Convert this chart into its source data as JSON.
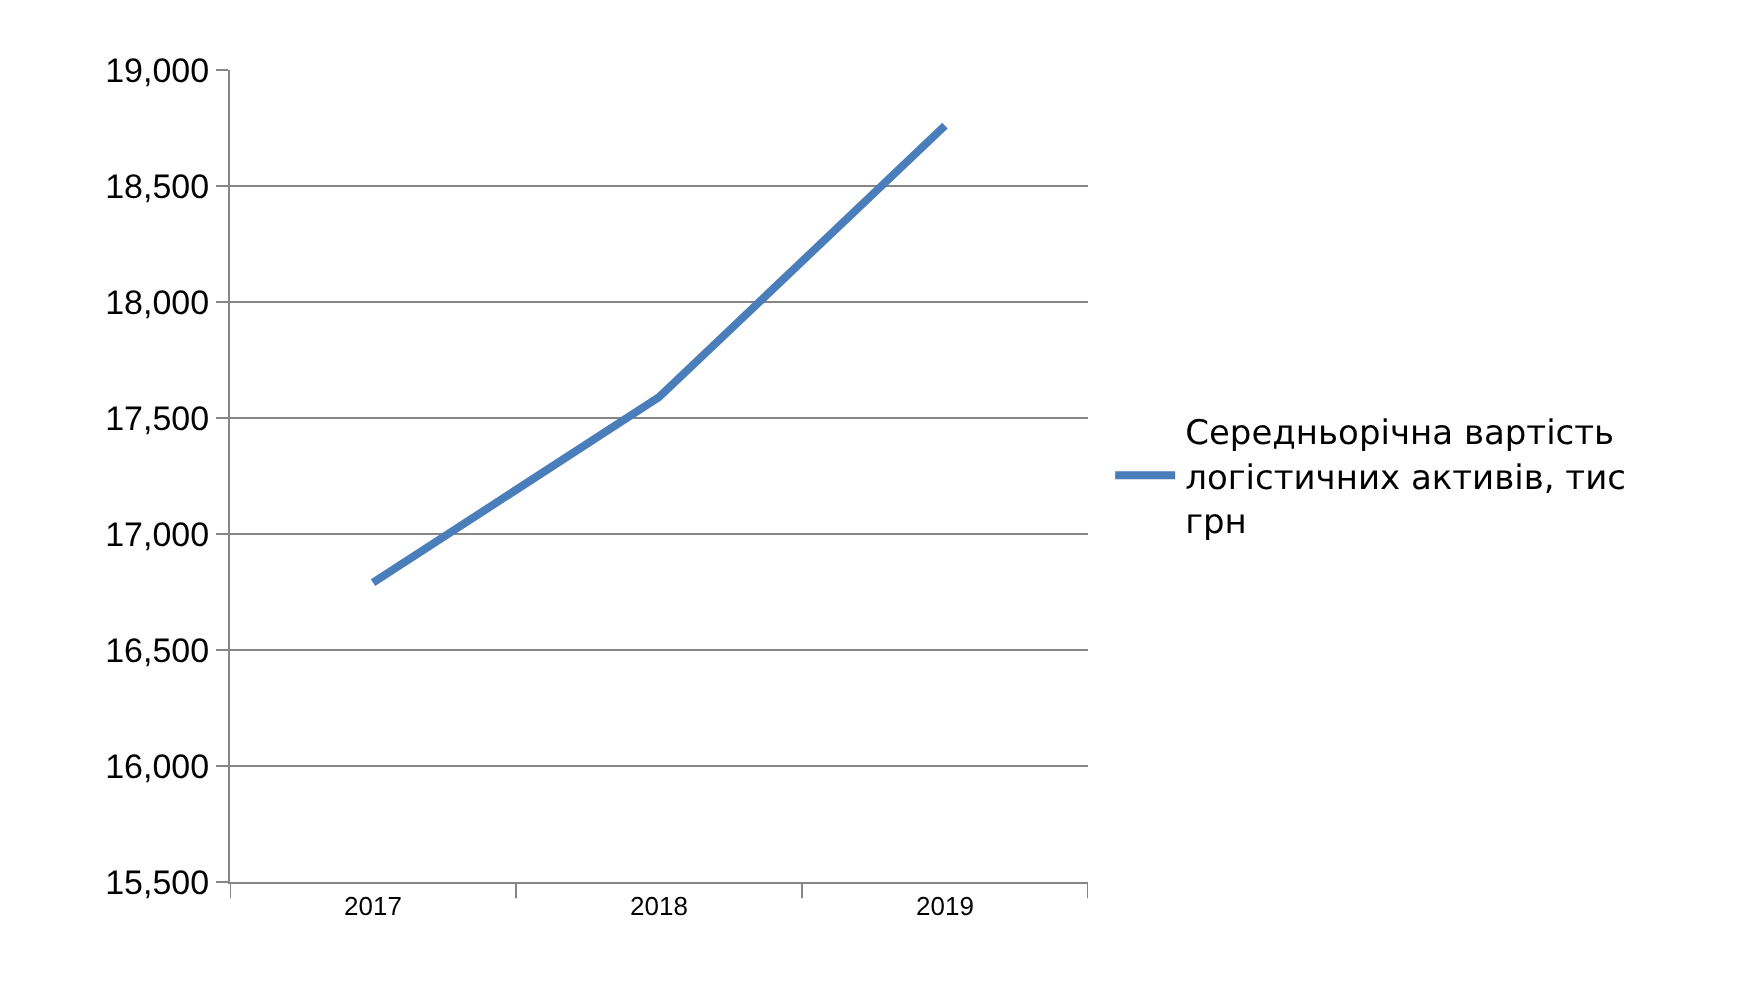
{
  "chart_data": {
    "type": "line",
    "categories": [
      "2017",
      "2018",
      "2019"
    ],
    "series": [
      {
        "name": "Середньорічна вартість логістичних активів, тис грн",
        "color": "#4a7ebb",
        "values": [
          16790,
          17590,
          18760
        ]
      }
    ],
    "ylim": [
      15500,
      19000
    ],
    "yticks": [
      {
        "value": 15500,
        "label": "15,500"
      },
      {
        "value": 16000,
        "label": "16,000"
      },
      {
        "value": 16500,
        "label": "16,500"
      },
      {
        "value": 17000,
        "label": "17,000"
      },
      {
        "value": 17500,
        "label": "17,500"
      },
      {
        "value": 18000,
        "label": "18,000"
      },
      {
        "value": 18500,
        "label": "18,500"
      },
      {
        "value": 19000,
        "label": "19,000"
      }
    ],
    "grid": "y",
    "legend": "right",
    "marker": "none",
    "line_style": "solid"
  }
}
